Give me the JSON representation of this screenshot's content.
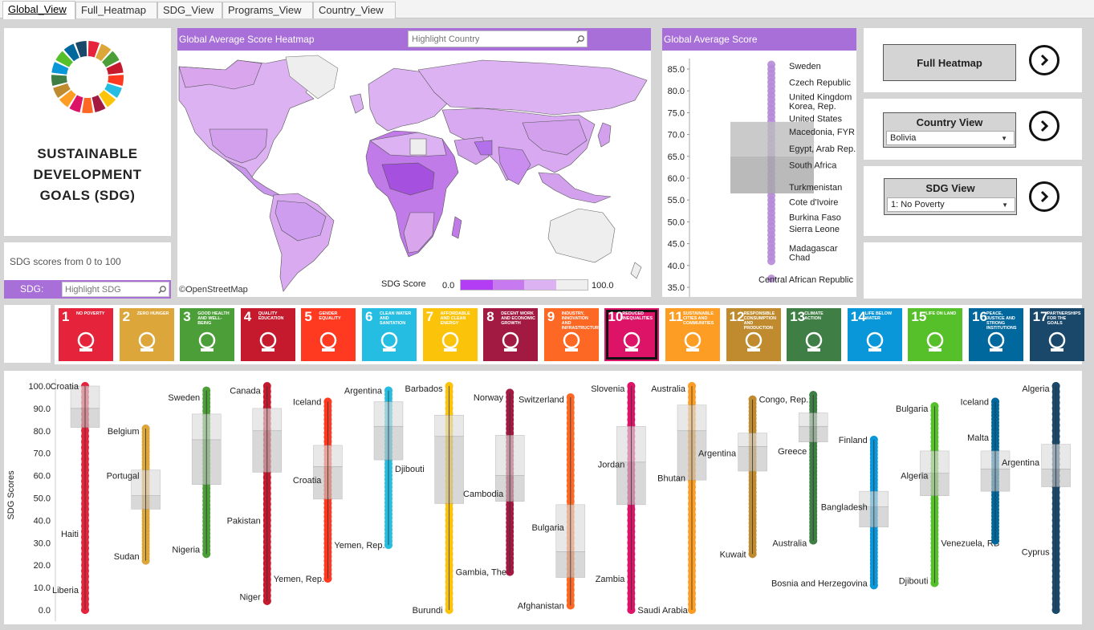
{
  "tabs": [
    "Global_View",
    "Full_Heatmap",
    "SDG_View",
    "Programs_View",
    "Country_View"
  ],
  "logo_title": "SUSTAINABLE DEVELOPMENT GOALS (SDG)",
  "logo_lines": [
    "SUSTAINABLE",
    "DEVELOPMENT",
    "GOALS (SDG)"
  ],
  "range_text": "SDG scores from 0 to 100",
  "sdg_filter": {
    "label": "SDG:",
    "placeholder": "Highlight SDG"
  },
  "map": {
    "title": "Global  Average Score Heatmap",
    "search_placeholder": "Highlight Country",
    "attribution": "©OpenStreetMap",
    "legend_title": "SDG Score",
    "legend_min": "0.0",
    "legend_max": "100.0",
    "colors": [
      "#b23df5",
      "#c77af0",
      "#dcb2f2",
      "#efefef"
    ]
  },
  "avg": {
    "title": "Global Average Score",
    "ticks": [
      "85.0",
      "80.0",
      "75.0",
      "70.0",
      "65.0",
      "60.0",
      "55.0",
      "50.0",
      "45.0",
      "40.0",
      "35.0"
    ],
    "tick_values": [
      85,
      80,
      75,
      70,
      65,
      60,
      55,
      50,
      45,
      40,
      35
    ],
    "labels": [
      {
        "text": "Sweden",
        "v": 85.7
      },
      {
        "text": "Czech Republic",
        "v": 82.0
      },
      {
        "text": "United Kingdom",
        "v": 78.7
      },
      {
        "text": "Korea, Rep.",
        "v": 76.5
      },
      {
        "text": "United States",
        "v": 73.7
      },
      {
        "text": "Macedonia, FYR",
        "v": 70.7
      },
      {
        "text": "Egypt, Arab Rep.",
        "v": 66.8
      },
      {
        "text": "South Africa",
        "v": 63.0
      },
      {
        "text": "Turkmenistan",
        "v": 58.0
      },
      {
        "text": "Cote d'Ivoire",
        "v": 54.6
      },
      {
        "text": "Burkina Faso",
        "v": 51.1
      },
      {
        "text": "Sierra Leone",
        "v": 48.4
      },
      {
        "text": "Madagascar",
        "v": 44.0
      },
      {
        "text": "Chad",
        "v": 41.9
      },
      {
        "text": "Central African Republic",
        "v": 36.8
      }
    ],
    "box": {
      "q1": 56.5,
      "median": 65.0,
      "q3": 72.9
    },
    "points": [
      86,
      85,
      84,
      83,
      82,
      81,
      80,
      79,
      78,
      77,
      76,
      75,
      74,
      73,
      72,
      71,
      70,
      69,
      68,
      67,
      66,
      65,
      64,
      63,
      62,
      61,
      60,
      59,
      58,
      57,
      56,
      55,
      54,
      53,
      52,
      51,
      50,
      49,
      48,
      47,
      46,
      45,
      44,
      43,
      42,
      41,
      37
    ],
    "color": "#b58ad6"
  },
  "nav": {
    "full_heatmap": "Full Heatmap",
    "country_view": "Country View",
    "country_value": "Bolivia",
    "sdg_view": "SDG View",
    "sdg_value": "1: No Poverty"
  },
  "sdg_tiles": [
    {
      "n": "1",
      "label": "No Poverty",
      "color": "#e5243b",
      "icon": "people-icon"
    },
    {
      "n": "2",
      "label": "Zero Hunger",
      "color": "#dda63a",
      "icon": "bowl-icon"
    },
    {
      "n": "3",
      "label": "Good Health and Well-Being",
      "color": "#4c9f38",
      "icon": "heartbeat-icon"
    },
    {
      "n": "4",
      "label": "Quality Education",
      "color": "#c5192d",
      "icon": "book-icon"
    },
    {
      "n": "5",
      "label": "Gender Equality",
      "color": "#ff3a21",
      "icon": "gender-icon"
    },
    {
      "n": "6",
      "label": "Clean Water and Sanitation",
      "color": "#26bde2",
      "icon": "water-icon"
    },
    {
      "n": "7",
      "label": "Affordable and Clean Energy",
      "color": "#fcc30b",
      "icon": "sun-icon"
    },
    {
      "n": "8",
      "label": "Decent Work and Economic Growth",
      "color": "#a21942",
      "icon": "growth-icon"
    },
    {
      "n": "9",
      "label": "Industry, Innovation and Infrastructure",
      "color": "#fd6925",
      "icon": "cubes-icon"
    },
    {
      "n": "10",
      "label": "Reduced Inequalities",
      "color": "#dd1367",
      "icon": "equal-icon"
    },
    {
      "n": "11",
      "label": "Sustainable Cities and Communities",
      "color": "#fd9d24",
      "icon": "city-icon"
    },
    {
      "n": "12",
      "label": "Responsible Consumption and Production",
      "color": "#bf8b2e",
      "icon": "infinity-icon"
    },
    {
      "n": "13",
      "label": "Climate Action",
      "color": "#3f7e44",
      "icon": "eye-icon"
    },
    {
      "n": "14",
      "label": "Life Below Water",
      "color": "#0a97d9",
      "icon": "fish-icon"
    },
    {
      "n": "15",
      "label": "Life on Land",
      "color": "#56c02b",
      "icon": "tree-icon"
    },
    {
      "n": "16",
      "label": "Peace, Justice and Strong Institutions",
      "color": "#00689d",
      "icon": "dove-icon"
    },
    {
      "n": "17",
      "label": "Partnerships for the Goals",
      "color": "#19486a",
      "icon": "rings-icon"
    }
  ],
  "chart_data": {
    "type": "box-strip",
    "ylabel": "SDG Scores",
    "yticks": [
      "100.0",
      "90.0",
      "80.0",
      "70.0",
      "60.0",
      "50.0",
      "40.0",
      "30.0",
      "20.0",
      "10.0",
      "0.0"
    ],
    "ylim": [
      0,
      100
    ],
    "series": [
      {
        "name": "1",
        "color": "#e5243b",
        "min": 0,
        "max": 100,
        "q1": 81.5,
        "median": 90,
        "q3": 100,
        "labels": [
          {
            "text": "Croatia",
            "v": 100,
            "side": "L"
          },
          {
            "text": "Haiti",
            "v": 34,
            "side": "L"
          },
          {
            "text": "Liberia",
            "v": 9,
            "side": "L"
          }
        ]
      },
      {
        "name": "2",
        "color": "#dda63a",
        "min": 22,
        "max": 81,
        "q1": 45,
        "median": 51,
        "q3": 62.5,
        "labels": [
          {
            "text": "Belgium",
            "v": 80,
            "side": "L"
          },
          {
            "text": "Portugal",
            "v": 60,
            "side": "L"
          },
          {
            "text": "Sudan",
            "v": 24,
            "side": "L"
          }
        ]
      },
      {
        "name": "3",
        "color": "#4c9f38",
        "min": 25,
        "max": 98,
        "q1": 56,
        "median": 76,
        "q3": 87.5,
        "labels": [
          {
            "text": "Sweden",
            "v": 95,
            "side": "L"
          },
          {
            "text": "Nigeria",
            "v": 27,
            "side": "L"
          }
        ]
      },
      {
        "name": "4",
        "color": "#c5192d",
        "min": 4,
        "max": 100,
        "q1": 61.5,
        "median": 80,
        "q3": 90,
        "labels": [
          {
            "text": "Canada",
            "v": 98,
            "side": "L"
          },
          {
            "text": "Pakistan",
            "v": 40,
            "side": "L"
          },
          {
            "text": "Yemen, Rep.",
            "v": 14,
            "side": "R"
          },
          {
            "text": "Niger",
            "v": 6,
            "side": "L"
          }
        ]
      },
      {
        "name": "5",
        "color": "#ff3a21",
        "min": 14,
        "max": 93,
        "q1": 49.5,
        "median": 64,
        "q3": 73.5,
        "labels": [
          {
            "text": "Iceland",
            "v": 93,
            "side": "L"
          },
          {
            "text": "Croatia",
            "v": 58,
            "side": "L"
          },
          {
            "text": "Yemen, Rep.",
            "v": 29,
            "side": "R"
          }
        ]
      },
      {
        "name": "6",
        "color": "#26bde2",
        "min": 29,
        "max": 98,
        "q1": 67,
        "median": 82,
        "q3": 93,
        "labels": [
          {
            "text": "Argentina",
            "v": 98,
            "side": "L"
          },
          {
            "text": "Djibouti",
            "v": 63,
            "side": "R"
          }
        ]
      },
      {
        "name": "7",
        "color": "#fcc30b",
        "min": 0,
        "max": 100,
        "q1": 47.5,
        "median": 77.5,
        "q3": 87,
        "labels": [
          {
            "text": "Barbados",
            "v": 99,
            "side": "L"
          },
          {
            "text": "Gambia, The",
            "v": 17,
            "side": "R"
          },
          {
            "text": "Burundi",
            "v": 0,
            "side": "L"
          }
        ]
      },
      {
        "name": "8",
        "color": "#a21942",
        "min": 17,
        "max": 97,
        "q1": 48.5,
        "median": 60,
        "q3": 78,
        "labels": [
          {
            "text": "Norway",
            "v": 95,
            "side": "L"
          },
          {
            "text": "Cambodia",
            "v": 52,
            "side": "L"
          }
        ]
      },
      {
        "name": "9",
        "color": "#fd6925",
        "min": 2,
        "max": 95,
        "q1": 14.5,
        "median": 26,
        "q3": 47,
        "labels": [
          {
            "text": "Switzerland",
            "v": 94,
            "side": "L"
          },
          {
            "text": "Bulgaria",
            "v": 37,
            "side": "L"
          },
          {
            "text": "Afghanistan",
            "v": 2,
            "side": "L"
          }
        ]
      },
      {
        "name": "10",
        "color": "#dd1367",
        "min": 0,
        "max": 100,
        "q1": 47,
        "median": 66,
        "q3": 82,
        "labels": [
          {
            "text": "Slovenia",
            "v": 99,
            "side": "L"
          },
          {
            "text": "Jordan",
            "v": 65,
            "side": "L"
          },
          {
            "text": "Zambia",
            "v": 14,
            "side": "L"
          },
          {
            "text": "Saudi Arabia",
            "v": 0,
            "side": "R"
          }
        ]
      },
      {
        "name": "11",
        "color": "#fd9d24",
        "min": 0,
        "max": 100,
        "q1": 58,
        "median": 80,
        "q3": 91.5,
        "labels": [
          {
            "text": "Australia",
            "v": 99,
            "side": "L"
          },
          {
            "text": "Bhutan",
            "v": 59,
            "side": "L"
          },
          {
            "text": "Argentina",
            "v": 70,
            "side": "R"
          }
        ]
      },
      {
        "name": "12",
        "color": "#bf8b2e",
        "min": 25,
        "max": 94,
        "q1": 62,
        "median": 73,
        "q3": 79,
        "labels": [
          {
            "text": "Congo, Rep.",
            "v": 94,
            "side": "R"
          },
          {
            "text": "Kuwait",
            "v": 25,
            "side": "L"
          }
        ]
      },
      {
        "name": "13",
        "color": "#3f7e44",
        "min": 31,
        "max": 96,
        "q1": 75,
        "median": 82,
        "q3": 88,
        "labels": [
          {
            "text": "Greece",
            "v": 71,
            "side": "L"
          },
          {
            "text": "Australia",
            "v": 30,
            "side": "L"
          }
        ]
      },
      {
        "name": "14",
        "color": "#0a97d9",
        "min": 11,
        "max": 76,
        "q1": 37,
        "median": 46,
        "q3": 53,
        "labels": [
          {
            "text": "Finland",
            "v": 76,
            "side": "L"
          },
          {
            "text": "Bangladesh",
            "v": 46,
            "side": "L"
          },
          {
            "text": "Bosnia and Herzegovina",
            "v": 12,
            "side": "L"
          }
        ]
      },
      {
        "name": "15",
        "color": "#56c02b",
        "min": 12,
        "max": 91,
        "q1": 51,
        "median": 61,
        "q3": 71,
        "labels": [
          {
            "text": "Bulgaria",
            "v": 90,
            "side": "L"
          },
          {
            "text": "Algeria",
            "v": 60,
            "side": "L"
          },
          {
            "text": "Venezuela, RB",
            "v": 30,
            "side": "R"
          },
          {
            "text": "Djibouti",
            "v": 13,
            "side": "L"
          }
        ]
      },
      {
        "name": "16",
        "color": "#00689d",
        "min": 31,
        "max": 93,
        "q1": 53,
        "median": 63,
        "q3": 71,
        "labels": [
          {
            "text": "Iceland",
            "v": 93,
            "side": "L"
          },
          {
            "text": "Malta",
            "v": 77,
            "side": "L"
          },
          {
            "text": "Argentina",
            "v": 66,
            "side": "R"
          }
        ]
      },
      {
        "name": "17",
        "color": "#19486a",
        "min": 0,
        "max": 100,
        "q1": 55,
        "median": 63,
        "q3": 74,
        "labels": [
          {
            "text": "Algeria",
            "v": 99,
            "side": "L"
          },
          {
            "text": "Cyprus",
            "v": 26,
            "side": "L"
          }
        ]
      }
    ]
  }
}
